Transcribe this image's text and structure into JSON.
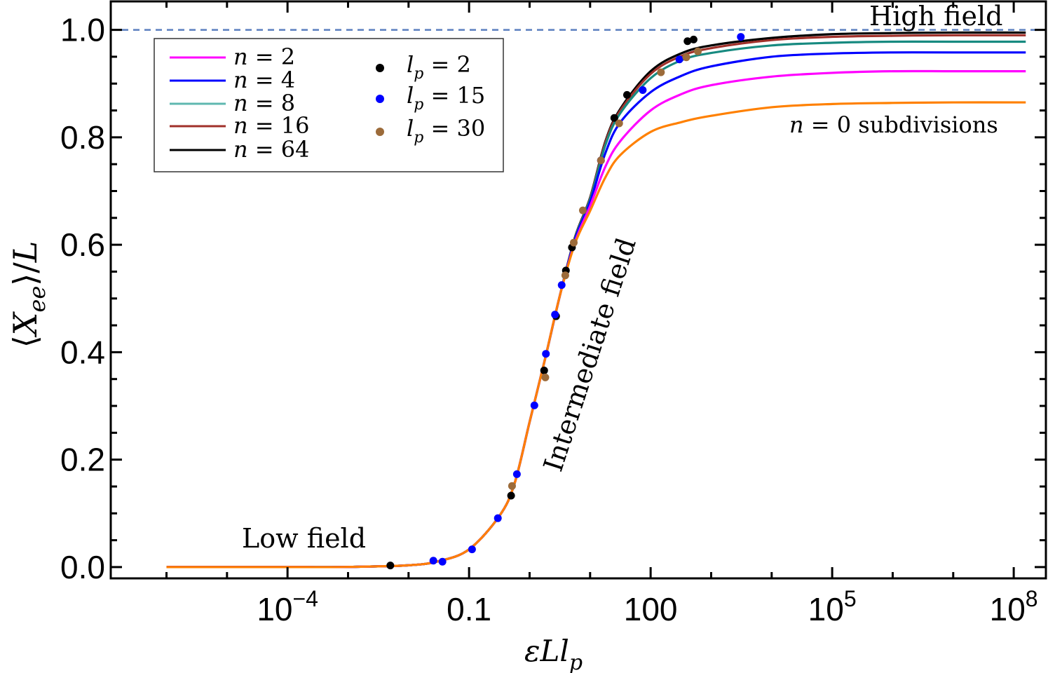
{
  "chart_data": {
    "type": "line",
    "xlabel": "εLl_p",
    "ylabel": "⟨X_ee⟩/L",
    "x_scale": "log",
    "xlim": [
      1.2e-07,
      340000000.0
    ],
    "ylim": [
      -0.021,
      1.053
    ],
    "x_ticks": [
      {
        "value": 0.0001,
        "base": "10",
        "exp": "−4"
      },
      {
        "value": 0.1,
        "base": "0.1",
        "exp": ""
      },
      {
        "value": 100,
        "base": "100",
        "exp": ""
      },
      {
        "value": 100000,
        "base": "10",
        "exp": "5"
      },
      {
        "value": 100000000,
        "base": "10",
        "exp": "8"
      }
    ],
    "y_ticks": [
      "0.0",
      "0.2",
      "0.4",
      "0.6",
      "0.8",
      "1.0"
    ],
    "grid": false,
    "legend_placement": "top-left",
    "reference_line": {
      "y": 1.0,
      "style": "dashed",
      "color": "#5b7fbf"
    },
    "x": [
      1e-06,
      1e-05,
      0.0001,
      0.001,
      0.01,
      0.0316,
      0.1,
      0.316,
      0.562,
      1,
      1.78,
      3.16,
      5.62,
      10,
      17.8,
      31.6,
      100,
      316,
      1000,
      10000,
      100000,
      1000000,
      10000000,
      158000000
    ],
    "series": [
      {
        "name": "n = 0 subdivisions",
        "legend": false,
        "color": "#ff8000",
        "values": [
          0,
          3e-06,
          3e-05,
          0.0003,
          0.0033,
          0.011,
          0.033,
          0.095,
          0.155,
          0.27,
          0.385,
          0.505,
          0.602,
          0.663,
          0.725,
          0.767,
          0.81,
          0.828,
          0.84,
          0.856,
          0.862,
          0.864,
          0.865,
          0.865
        ]
      },
      {
        "name": "n = 2",
        "legend_n": "2",
        "color": "#ff00ff",
        "values": [
          0,
          3e-06,
          3e-05,
          0.0003,
          0.0033,
          0.011,
          0.033,
          0.095,
          0.155,
          0.27,
          0.385,
          0.505,
          0.605,
          0.672,
          0.745,
          0.793,
          0.85,
          0.88,
          0.897,
          0.913,
          0.92,
          0.923,
          0.923,
          0.923
        ]
      },
      {
        "name": "n = 4",
        "legend_n": "4",
        "color": "#0000ff",
        "values": [
          0,
          3e-06,
          3e-05,
          0.0003,
          0.0033,
          0.011,
          0.033,
          0.095,
          0.155,
          0.27,
          0.385,
          0.505,
          0.61,
          0.68,
          0.77,
          0.828,
          0.884,
          0.914,
          0.932,
          0.95,
          0.956,
          0.958,
          0.958,
          0.958
        ]
      },
      {
        "name": "n = 8",
        "legend_n": "8",
        "color": "#178a80",
        "legend_color": "#5fb8b0",
        "values": [
          0,
          3e-06,
          3e-05,
          0.0003,
          0.0033,
          0.011,
          0.033,
          0.095,
          0.155,
          0.27,
          0.385,
          0.505,
          0.612,
          0.685,
          0.785,
          0.845,
          0.91,
          0.943,
          0.957,
          0.971,
          0.976,
          0.978,
          0.978,
          0.978
        ]
      },
      {
        "name": "n = 16",
        "legend_n": "16",
        "color": "#a0302a",
        "values": [
          0,
          3e-06,
          3e-05,
          0.0003,
          0.0033,
          0.011,
          0.033,
          0.095,
          0.155,
          0.27,
          0.385,
          0.505,
          0.613,
          0.687,
          0.79,
          0.85,
          0.918,
          0.951,
          0.966,
          0.981,
          0.987,
          0.989,
          0.99,
          0.99
        ]
      },
      {
        "name": "n = 64",
        "legend_n": "64",
        "color": "#000000",
        "values": [
          0,
          3e-06,
          3e-05,
          0.0003,
          0.0033,
          0.011,
          0.033,
          0.095,
          0.155,
          0.27,
          0.385,
          0.505,
          0.614,
          0.688,
          0.792,
          0.853,
          0.923,
          0.956,
          0.971,
          0.985,
          0.992,
          0.994,
          0.995,
          0.995
        ]
      }
    ],
    "scatter": [
      {
        "name": "l_p = 2",
        "legend_lp": "2",
        "color": "#000000",
        "points": [
          [
            0.005,
            0.003
          ],
          [
            0.495,
            0.133
          ],
          [
            1.74,
            0.366
          ],
          [
            2.74,
            0.467
          ],
          [
            3.98,
            0.552
          ],
          [
            5.01,
            0.595
          ],
          [
            25.1,
            0.836
          ],
          [
            40.7,
            0.879
          ],
          [
            407,
            0.979
          ],
          [
            513,
            0.982
          ]
        ]
      },
      {
        "name": "l_p = 15",
        "legend_lp": "15",
        "color": "#0000ff",
        "points": [
          [
            0.0257,
            0.012
          ],
          [
            0.0363,
            0.01
          ],
          [
            0.112,
            0.033
          ],
          [
            0.299,
            0.091
          ],
          [
            0.617,
            0.173
          ],
          [
            1.2,
            0.301
          ],
          [
            1.86,
            0.397
          ],
          [
            2.63,
            0.47
          ],
          [
            3.39,
            0.525
          ],
          [
            15.1,
            0.757
          ],
          [
            74.1,
            0.888
          ],
          [
            299,
            0.945
          ],
          [
            3090,
            0.987
          ]
        ]
      },
      {
        "name": "l_p = 30",
        "legend_lp": "30",
        "color": "#9c6b3a",
        "points": [
          [
            0.513,
            0.151
          ],
          [
            1.82,
            0.353
          ],
          [
            3.89,
            0.543
          ],
          [
            5.37,
            0.604
          ],
          [
            7.59,
            0.664
          ],
          [
            15.1,
            0.757
          ],
          [
            30.2,
            0.826
          ],
          [
            148,
            0.921
          ],
          [
            389,
            0.949
          ],
          [
            603,
            0.96
          ]
        ]
      }
    ],
    "annotations": {
      "high_field": "High field",
      "intermediate_field": "Intermediate field",
      "low_field": "Low field",
      "n0_label_var": "n",
      "n0_label_rest": " = 0 subdivisions"
    }
  }
}
